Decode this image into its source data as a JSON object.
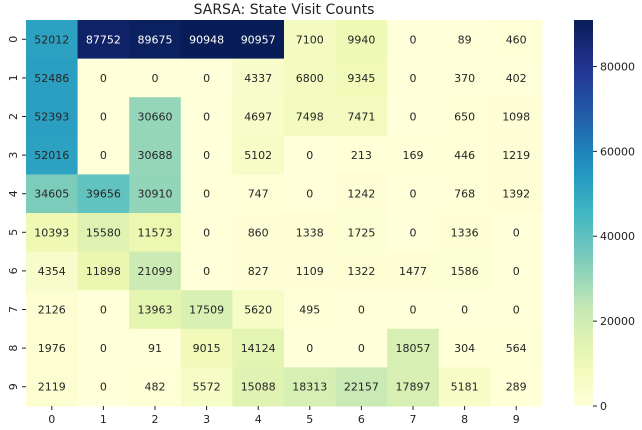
{
  "chart_data": {
    "type": "heatmap",
    "title": "SARSA: State Visit Counts",
    "x_ticks": [
      "0",
      "1",
      "2",
      "3",
      "4",
      "5",
      "6",
      "7",
      "8",
      "9"
    ],
    "y_ticks": [
      "0",
      "1",
      "2",
      "3",
      "4",
      "5",
      "6",
      "7",
      "8",
      "9"
    ],
    "values": [
      [
        52012,
        87752,
        89675,
        90948,
        90957,
        7100,
        9940,
        0,
        89,
        460
      ],
      [
        52486,
        0,
        0,
        0,
        4337,
        6800,
        9345,
        0,
        370,
        402
      ],
      [
        52393,
        0,
        30660,
        0,
        4697,
        7498,
        7471,
        0,
        650,
        1098
      ],
      [
        52016,
        0,
        30688,
        0,
        5102,
        0,
        213,
        169,
        446,
        1219
      ],
      [
        34605,
        39656,
        30910,
        0,
        747,
        0,
        1242,
        0,
        768,
        1392
      ],
      [
        10393,
        15580,
        11573,
        0,
        860,
        1338,
        1725,
        0,
        1336,
        0
      ],
      [
        4354,
        11898,
        21099,
        0,
        827,
        1109,
        1322,
        1477,
        1586,
        0
      ],
      [
        2126,
        0,
        13963,
        17509,
        5620,
        495,
        0,
        0,
        0,
        0
      ],
      [
        1976,
        0,
        91,
        9015,
        14124,
        0,
        0,
        18057,
        304,
        564
      ],
      [
        2119,
        0,
        482,
        5572,
        15088,
        18313,
        22157,
        17897,
        5181,
        289
      ]
    ],
    "colorbar": {
      "colormap": "YlGnBu",
      "range": [
        0,
        90957
      ],
      "ticks": [
        0,
        20000,
        40000,
        60000,
        80000
      ],
      "tick_labels": [
        "0",
        "20000",
        "40000",
        "60000",
        "80000"
      ]
    }
  }
}
